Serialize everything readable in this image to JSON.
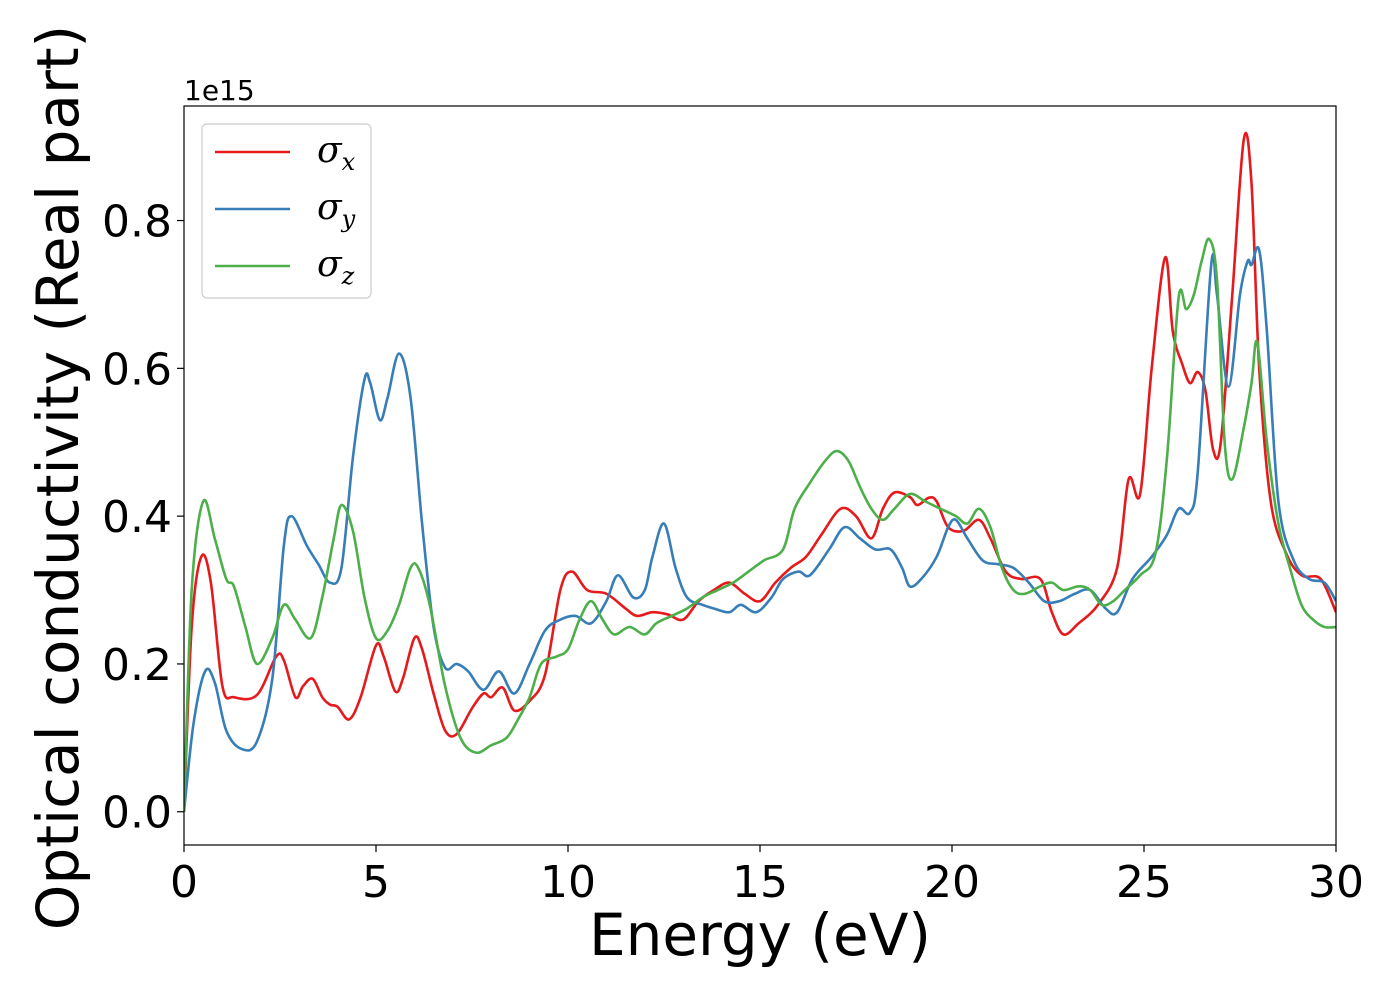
{
  "chart_data": {
    "type": "line",
    "xlabel": "Energy (eV)",
    "ylabel": "Optical conductivity (Real part)",
    "y_offset_text": "1e15",
    "xlim": [
      0,
      30
    ],
    "ylim": [
      -0.045,
      0.955
    ],
    "x_ticks": [
      0,
      5,
      10,
      15,
      20,
      25,
      30
    ],
    "x_tick_labels": [
      "0",
      "5",
      "10",
      "15",
      "20",
      "25",
      "30"
    ],
    "y_ticks": [
      0.0,
      0.2,
      0.4,
      0.6,
      0.8
    ],
    "y_tick_labels": [
      "0.0",
      "0.2",
      "0.4",
      "0.6",
      "0.8"
    ],
    "grid": false,
    "legend_position": "top-left",
    "series": [
      {
        "name": "σ",
        "subscript": "x",
        "color": "#e41a1c",
        "points": [
          [
            0,
            0.0
          ],
          [
            0.2,
            0.25
          ],
          [
            0.45,
            0.345
          ],
          [
            0.7,
            0.31
          ],
          [
            1.0,
            0.17
          ],
          [
            1.3,
            0.155
          ],
          [
            1.9,
            0.158
          ],
          [
            2.4,
            0.21
          ],
          [
            2.6,
            0.205
          ],
          [
            2.9,
            0.155
          ],
          [
            3.1,
            0.17
          ],
          [
            3.35,
            0.18
          ],
          [
            3.6,
            0.155
          ],
          [
            3.8,
            0.145
          ],
          [
            4.0,
            0.142
          ],
          [
            4.3,
            0.125
          ],
          [
            4.6,
            0.155
          ],
          [
            5.0,
            0.225
          ],
          [
            5.2,
            0.21
          ],
          [
            5.5,
            0.163
          ],
          [
            5.7,
            0.18
          ],
          [
            6.0,
            0.235
          ],
          [
            6.2,
            0.22
          ],
          [
            6.5,
            0.16
          ],
          [
            6.8,
            0.11
          ],
          [
            7.1,
            0.105
          ],
          [
            7.5,
            0.14
          ],
          [
            7.8,
            0.16
          ],
          [
            8.0,
            0.155
          ],
          [
            8.3,
            0.168
          ],
          [
            8.6,
            0.137
          ],
          [
            9.0,
            0.15
          ],
          [
            9.4,
            0.185
          ],
          [
            9.8,
            0.3
          ],
          [
            10.1,
            0.325
          ],
          [
            10.5,
            0.3
          ],
          [
            11.0,
            0.295
          ],
          [
            11.5,
            0.275
          ],
          [
            11.8,
            0.265
          ],
          [
            12.2,
            0.27
          ],
          [
            12.6,
            0.267
          ],
          [
            13.0,
            0.26
          ],
          [
            13.4,
            0.285
          ],
          [
            13.8,
            0.3
          ],
          [
            14.2,
            0.31
          ],
          [
            14.6,
            0.295
          ],
          [
            15.0,
            0.285
          ],
          [
            15.4,
            0.31
          ],
          [
            15.8,
            0.33
          ],
          [
            16.2,
            0.345
          ],
          [
            16.6,
            0.375
          ],
          [
            17.1,
            0.41
          ],
          [
            17.5,
            0.4
          ],
          [
            17.9,
            0.37
          ],
          [
            18.2,
            0.41
          ],
          [
            18.5,
            0.432
          ],
          [
            18.9,
            0.426
          ],
          [
            19.1,
            0.415
          ],
          [
            19.4,
            0.425
          ],
          [
            19.6,
            0.42
          ],
          [
            19.9,
            0.385
          ],
          [
            20.3,
            0.38
          ],
          [
            20.7,
            0.395
          ],
          [
            21.0,
            0.37
          ],
          [
            21.4,
            0.325
          ],
          [
            21.8,
            0.315
          ],
          [
            22.3,
            0.315
          ],
          [
            22.6,
            0.27
          ],
          [
            22.9,
            0.24
          ],
          [
            23.3,
            0.255
          ],
          [
            23.8,
            0.28
          ],
          [
            24.3,
            0.33
          ],
          [
            24.6,
            0.45
          ],
          [
            24.9,
            0.43
          ],
          [
            25.2,
            0.6
          ],
          [
            25.55,
            0.75
          ],
          [
            25.75,
            0.65
          ],
          [
            26.0,
            0.605
          ],
          [
            26.2,
            0.58
          ],
          [
            26.4,
            0.595
          ],
          [
            26.6,
            0.57
          ],
          [
            26.8,
            0.49
          ],
          [
            27.0,
            0.5
          ],
          [
            27.3,
            0.7
          ],
          [
            27.6,
            0.91
          ],
          [
            27.8,
            0.85
          ],
          [
            28.0,
            0.6
          ],
          [
            28.3,
            0.42
          ],
          [
            28.7,
            0.35
          ],
          [
            29.1,
            0.32
          ],
          [
            29.6,
            0.315
          ],
          [
            30.0,
            0.27
          ]
        ]
      },
      {
        "name": "σ",
        "subscript": "y",
        "color": "#377eb8",
        "points": [
          [
            0,
            0.0
          ],
          [
            0.25,
            0.12
          ],
          [
            0.55,
            0.19
          ],
          [
            0.8,
            0.175
          ],
          [
            1.1,
            0.11
          ],
          [
            1.5,
            0.085
          ],
          [
            1.9,
            0.095
          ],
          [
            2.3,
            0.18
          ],
          [
            2.6,
            0.36
          ],
          [
            2.8,
            0.4
          ],
          [
            3.2,
            0.36
          ],
          [
            3.5,
            0.335
          ],
          [
            3.8,
            0.31
          ],
          [
            4.1,
            0.33
          ],
          [
            4.4,
            0.48
          ],
          [
            4.7,
            0.585
          ],
          [
            4.85,
            0.58
          ],
          [
            5.1,
            0.53
          ],
          [
            5.3,
            0.56
          ],
          [
            5.6,
            0.62
          ],
          [
            5.9,
            0.56
          ],
          [
            6.2,
            0.39
          ],
          [
            6.5,
            0.25
          ],
          [
            6.8,
            0.195
          ],
          [
            7.1,
            0.2
          ],
          [
            7.4,
            0.19
          ],
          [
            7.8,
            0.165
          ],
          [
            8.2,
            0.19
          ],
          [
            8.6,
            0.16
          ],
          [
            9.0,
            0.2
          ],
          [
            9.4,
            0.245
          ],
          [
            9.8,
            0.26
          ],
          [
            10.2,
            0.265
          ],
          [
            10.6,
            0.255
          ],
          [
            11.0,
            0.285
          ],
          [
            11.3,
            0.32
          ],
          [
            11.7,
            0.29
          ],
          [
            12.0,
            0.3
          ],
          [
            12.2,
            0.345
          ],
          [
            12.5,
            0.39
          ],
          [
            12.8,
            0.33
          ],
          [
            13.1,
            0.29
          ],
          [
            13.5,
            0.28
          ],
          [
            13.8,
            0.275
          ],
          [
            14.2,
            0.27
          ],
          [
            14.5,
            0.28
          ],
          [
            14.9,
            0.27
          ],
          [
            15.3,
            0.29
          ],
          [
            15.6,
            0.315
          ],
          [
            16.0,
            0.325
          ],
          [
            16.3,
            0.32
          ],
          [
            16.8,
            0.355
          ],
          [
            17.2,
            0.385
          ],
          [
            17.6,
            0.37
          ],
          [
            18.0,
            0.355
          ],
          [
            18.4,
            0.355
          ],
          [
            18.7,
            0.33
          ],
          [
            18.9,
            0.305
          ],
          [
            19.2,
            0.315
          ],
          [
            19.6,
            0.345
          ],
          [
            19.9,
            0.385
          ],
          [
            20.1,
            0.395
          ],
          [
            20.4,
            0.37
          ],
          [
            20.8,
            0.34
          ],
          [
            21.2,
            0.335
          ],
          [
            21.6,
            0.33
          ],
          [
            22.0,
            0.31
          ],
          [
            22.4,
            0.285
          ],
          [
            22.8,
            0.285
          ],
          [
            23.2,
            0.295
          ],
          [
            23.6,
            0.3
          ],
          [
            24.0,
            0.275
          ],
          [
            24.3,
            0.27
          ],
          [
            24.7,
            0.315
          ],
          [
            25.2,
            0.345
          ],
          [
            25.6,
            0.375
          ],
          [
            25.9,
            0.41
          ],
          [
            26.2,
            0.405
          ],
          [
            26.4,
            0.46
          ],
          [
            26.75,
            0.74
          ],
          [
            26.9,
            0.7
          ],
          [
            27.2,
            0.575
          ],
          [
            27.5,
            0.7
          ],
          [
            27.7,
            0.745
          ],
          [
            27.8,
            0.74
          ],
          [
            28.0,
            0.76
          ],
          [
            28.2,
            0.65
          ],
          [
            28.5,
            0.42
          ],
          [
            28.9,
            0.34
          ],
          [
            29.3,
            0.315
          ],
          [
            29.7,
            0.31
          ],
          [
            30.0,
            0.285
          ]
        ]
      },
      {
        "name": "σ",
        "subscript": "z",
        "color": "#4daf4a",
        "points": [
          [
            0,
            0.0
          ],
          [
            0.2,
            0.3
          ],
          [
            0.5,
            0.42
          ],
          [
            0.8,
            0.37
          ],
          [
            1.1,
            0.315
          ],
          [
            1.3,
            0.305
          ],
          [
            1.6,
            0.25
          ],
          [
            1.9,
            0.2
          ],
          [
            2.3,
            0.235
          ],
          [
            2.6,
            0.28
          ],
          [
            2.9,
            0.26
          ],
          [
            3.3,
            0.235
          ],
          [
            3.6,
            0.29
          ],
          [
            3.9,
            0.37
          ],
          [
            4.1,
            0.415
          ],
          [
            4.4,
            0.38
          ],
          [
            4.7,
            0.29
          ],
          [
            5.0,
            0.235
          ],
          [
            5.3,
            0.245
          ],
          [
            5.6,
            0.28
          ],
          [
            5.9,
            0.33
          ],
          [
            6.1,
            0.33
          ],
          [
            6.4,
            0.28
          ],
          [
            6.8,
            0.17
          ],
          [
            7.2,
            0.1
          ],
          [
            7.6,
            0.08
          ],
          [
            8.0,
            0.09
          ],
          [
            8.4,
            0.1
          ],
          [
            8.7,
            0.125
          ],
          [
            9.0,
            0.155
          ],
          [
            9.3,
            0.2
          ],
          [
            9.7,
            0.21
          ],
          [
            10.0,
            0.22
          ],
          [
            10.3,
            0.26
          ],
          [
            10.6,
            0.285
          ],
          [
            10.9,
            0.26
          ],
          [
            11.2,
            0.24
          ],
          [
            11.6,
            0.25
          ],
          [
            12.0,
            0.24
          ],
          [
            12.3,
            0.255
          ],
          [
            12.7,
            0.265
          ],
          [
            13.1,
            0.275
          ],
          [
            13.5,
            0.29
          ],
          [
            13.9,
            0.3
          ],
          [
            14.3,
            0.31
          ],
          [
            14.7,
            0.325
          ],
          [
            15.1,
            0.34
          ],
          [
            15.6,
            0.355
          ],
          [
            15.9,
            0.41
          ],
          [
            16.3,
            0.445
          ],
          [
            16.7,
            0.475
          ],
          [
            17.0,
            0.488
          ],
          [
            17.3,
            0.475
          ],
          [
            17.6,
            0.44
          ],
          [
            17.9,
            0.41
          ],
          [
            18.2,
            0.395
          ],
          [
            18.5,
            0.41
          ],
          [
            18.9,
            0.43
          ],
          [
            19.3,
            0.42
          ],
          [
            19.7,
            0.41
          ],
          [
            20.1,
            0.4
          ],
          [
            20.4,
            0.39
          ],
          [
            20.7,
            0.41
          ],
          [
            21.0,
            0.385
          ],
          [
            21.3,
            0.33
          ],
          [
            21.6,
            0.3
          ],
          [
            21.9,
            0.295
          ],
          [
            22.3,
            0.305
          ],
          [
            22.6,
            0.31
          ],
          [
            22.9,
            0.3
          ],
          [
            23.3,
            0.305
          ],
          [
            23.6,
            0.3
          ],
          [
            23.9,
            0.28
          ],
          [
            24.2,
            0.285
          ],
          [
            24.5,
            0.3
          ],
          [
            24.9,
            0.32
          ],
          [
            25.3,
            0.35
          ],
          [
            25.6,
            0.48
          ],
          [
            25.9,
            0.695
          ],
          [
            26.1,
            0.68
          ],
          [
            26.3,
            0.7
          ],
          [
            26.5,
            0.745
          ],
          [
            26.7,
            0.775
          ],
          [
            26.9,
            0.72
          ],
          [
            27.1,
            0.5
          ],
          [
            27.3,
            0.45
          ],
          [
            27.6,
            0.52
          ],
          [
            27.8,
            0.58
          ],
          [
            27.95,
            0.635
          ],
          [
            28.2,
            0.5
          ],
          [
            28.5,
            0.39
          ],
          [
            28.8,
            0.33
          ],
          [
            29.1,
            0.28
          ],
          [
            29.4,
            0.26
          ],
          [
            29.7,
            0.25
          ],
          [
            30.0,
            0.25
          ]
        ]
      }
    ]
  }
}
